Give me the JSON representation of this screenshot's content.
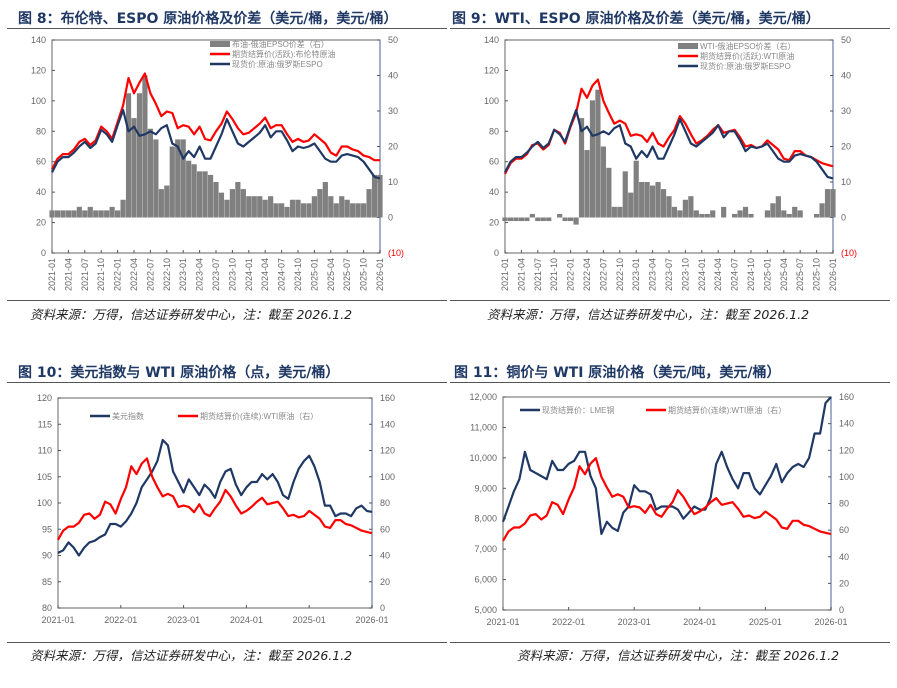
{
  "figures": [
    {
      "title": "图 8：布伦特、ESPO 原油价格及价差（美元/桶，美元/桶）",
      "source": "资料来源：万得，信达证券研发中心，注：截至 2026.1.2"
    },
    {
      "title": "图 9：WTI、ESPO 原油价格及价差（美元/桶，美元/桶）",
      "source": "资料来源：万得，信达证券研发中心，注：截至 2026.1.2"
    },
    {
      "title": "图 10：美元指数与 WTI 原油价格（点，美元/桶）",
      "source": "资料来源：万得，信达证券研发中心，注：截至 2026.1.2"
    },
    {
      "title": "图 11：铜价与 WTI 原油价格（美元/吨，美元/桶）",
      "source": "资料来源：万得，信达证券研发中心，注：截至 2026.1.2"
    }
  ],
  "colors": {
    "red": "#ff0000",
    "navy": "#1f3864",
    "gray": "#808080",
    "title": "#1f3864"
  },
  "chart_data": [
    {
      "type": "line",
      "title": "布伦特、ESPO 原油价格及价差",
      "x_ticks": [
        "2021-01",
        "2021-04",
        "2021-07",
        "2021-10",
        "2022-01",
        "2022-04",
        "2022-07",
        "2022-10",
        "2023-01",
        "2023-04",
        "2023-07",
        "2023-10",
        "2024-01",
        "2024-04",
        "2024-07",
        "2024-10",
        "2025-01",
        "2025-04",
        "2025-07",
        "2025-10",
        "2026-01"
      ],
      "y_left": {
        "min": 0,
        "max": 140,
        "ticks": [
          "0",
          "20",
          "40",
          "60",
          "80",
          "100",
          "120",
          "140"
        ]
      },
      "y_right": {
        "min": -10,
        "max": 50,
        "ticks": [
          "(10)",
          "0",
          "10",
          "20",
          "30",
          "40",
          "50"
        ]
      },
      "legend": "top-center",
      "series": [
        {
          "name": "布油-俄油EPSO价差（右）",
          "kind": "bar",
          "axis": "right",
          "color": "#808080",
          "values": [
            2,
            2,
            2,
            2,
            2,
            3,
            2,
            3,
            2,
            2,
            2,
            3,
            2,
            5,
            35,
            28,
            35,
            40,
            25,
            22,
            8,
            9,
            20,
            22,
            22,
            16,
            15,
            13,
            13,
            12,
            10,
            7,
            5,
            8,
            10,
            8,
            6,
            6,
            6,
            5,
            6,
            4,
            4,
            3,
            5,
            5,
            4,
            4,
            6,
            8,
            10,
            6,
            4,
            6,
            5,
            4,
            4,
            4,
            8,
            12,
            12
          ]
        },
        {
          "name": "期货结算价(活跃):布伦特原油",
          "kind": "line",
          "axis": "left",
          "color": "#ff0000",
          "values": [
            55,
            62,
            65,
            65,
            68,
            73,
            75,
            71,
            74,
            83,
            80,
            75,
            86,
            97,
            115,
            105,
            112,
            118,
            105,
            98,
            90,
            93,
            92,
            82,
            84,
            83,
            78,
            83,
            75,
            74,
            80,
            85,
            93,
            88,
            82,
            78,
            79,
            82,
            85,
            89,
            82,
            84,
            84,
            78,
            73,
            75,
            73,
            74,
            78,
            75,
            72,
            66,
            64,
            70,
            70,
            68,
            67,
            64,
            63,
            61,
            61
          ]
        },
        {
          "name": "现货价:原油:俄罗斯ESPO",
          "kind": "line",
          "axis": "left",
          "color": "#1f3864",
          "values": [
            53,
            60,
            63,
            63,
            66,
            70,
            73,
            69,
            72,
            81,
            78,
            73,
            84,
            94,
            80,
            83,
            77,
            78,
            80,
            78,
            82,
            84,
            72,
            70,
            62,
            67,
            63,
            70,
            62,
            62,
            70,
            78,
            88,
            80,
            72,
            70,
            73,
            76,
            79,
            84,
            76,
            80,
            80,
            74,
            67,
            70,
            69,
            70,
            72,
            67,
            62,
            60,
            60,
            64,
            65,
            64,
            63,
            60,
            55,
            50,
            49
          ]
        }
      ]
    },
    {
      "type": "line",
      "title": "WTI、ESPO 原油价格及价差",
      "x_ticks": [
        "2021-01",
        "2021-04",
        "2021-07",
        "2021-10",
        "2022-01",
        "2022-04",
        "2022-07",
        "2022-10",
        "2023-01",
        "2023-04",
        "2023-07",
        "2023-10",
        "2024-01",
        "2024-04",
        "2024-07",
        "2024-10",
        "2025-01",
        "2025-04",
        "2025-07",
        "2025-10",
        "2026-01"
      ],
      "y_left": {
        "min": 0,
        "max": 140,
        "ticks": [
          "0",
          "20",
          "40",
          "60",
          "80",
          "100",
          "120",
          "140"
        ]
      },
      "y_right": {
        "min": -10,
        "max": 50,
        "ticks": [
          "(10)",
          "0",
          "10",
          "20",
          "30",
          "40",
          "50"
        ]
      },
      "legend": "top-center",
      "series": [
        {
          "name": "WTI-俄油EPSO价差（右）",
          "kind": "bar",
          "axis": "right",
          "color": "#808080",
          "values": [
            -1,
            -1,
            -1,
            -1,
            -1,
            1,
            -1,
            -1,
            -1,
            0,
            1,
            -1,
            -1,
            -2,
            28,
            19,
            33,
            36,
            20,
            14,
            3,
            3,
            13,
            7,
            16,
            10,
            10,
            9,
            10,
            8,
            6,
            3,
            2,
            5,
            6,
            2,
            1,
            1,
            2,
            0,
            3,
            0,
            1,
            2,
            3,
            1,
            0,
            0,
            2,
            4,
            6,
            2,
            1,
            3,
            2,
            0,
            0,
            1,
            4,
            8,
            8
          ]
        },
        {
          "name": "期货结算价(活跃):WTI原油",
          "kind": "line",
          "axis": "left",
          "color": "#ff0000",
          "values": [
            52,
            59,
            62,
            62,
            65,
            71,
            72,
            68,
            71,
            81,
            79,
            72,
            83,
            92,
            108,
            102,
            110,
            114,
            100,
            92,
            85,
            87,
            85,
            77,
            78,
            77,
            73,
            79,
            72,
            70,
            76,
            81,
            90,
            85,
            78,
            72,
            74,
            77,
            81,
            84,
            79,
            80,
            81,
            76,
            70,
            71,
            69,
            70,
            74,
            71,
            68,
            62,
            61,
            67,
            67,
            64,
            63,
            61,
            59,
            58,
            57
          ]
        },
        {
          "name": "现货价:原油:俄罗斯ESPO",
          "kind": "line",
          "axis": "left",
          "color": "#1f3864",
          "values": [
            53,
            60,
            63,
            63,
            66,
            70,
            73,
            69,
            72,
            81,
            78,
            73,
            84,
            94,
            80,
            83,
            77,
            78,
            80,
            78,
            82,
            84,
            72,
            70,
            62,
            67,
            63,
            70,
            62,
            62,
            70,
            78,
            88,
            80,
            72,
            70,
            73,
            76,
            79,
            84,
            76,
            80,
            80,
            74,
            67,
            70,
            69,
            70,
            72,
            67,
            62,
            60,
            60,
            64,
            65,
            64,
            63,
            60,
            55,
            50,
            49
          ]
        }
      ]
    },
    {
      "type": "line",
      "title": "美元指数与 WTI 原油价格",
      "x_ticks": [
        "2021-01",
        "2022-01",
        "2023-01",
        "2024-01",
        "2025-01",
        "2026-01"
      ],
      "y_left": {
        "min": 80,
        "max": 120,
        "ticks": [
          "80",
          "85",
          "90",
          "95",
          "100",
          "105",
          "110",
          "115",
          "120"
        ]
      },
      "y_right": {
        "min": 0,
        "max": 160,
        "ticks": [
          "0",
          "20",
          "40",
          "60",
          "80",
          "100",
          "120",
          "140",
          "160"
        ]
      },
      "legend": "top",
      "series": [
        {
          "name": "美元指数",
          "kind": "line",
          "axis": "left",
          "color": "#1f3864",
          "values": [
            90.5,
            91,
            92.5,
            91.5,
            90,
            91.5,
            92.5,
            92.8,
            93.5,
            94,
            96,
            96,
            95.5,
            96.5,
            98,
            100,
            103,
            104.5,
            106,
            108,
            112,
            111,
            106,
            104,
            102,
            104.5,
            103,
            101.5,
            103.5,
            102.5,
            101,
            104,
            106,
            106.5,
            103.5,
            101.5,
            103,
            104,
            104,
            105.5,
            104.5,
            105.5,
            104,
            101.5,
            100.8,
            104,
            106.5,
            108,
            109,
            107,
            104,
            99.5,
            99.5,
            97.5,
            98,
            98,
            97.5,
            99,
            99.5,
            98.5,
            98.3
          ]
        },
        {
          "name": "期货结算价(连续):WTI原油（右）",
          "kind": "line",
          "axis": "right",
          "color": "#ff0000",
          "values": [
            52,
            59,
            62,
            62,
            65,
            71,
            72,
            68,
            71,
            81,
            79,
            72,
            83,
            92,
            108,
            102,
            110,
            114,
            100,
            92,
            85,
            87,
            85,
            77,
            78,
            77,
            73,
            79,
            72,
            70,
            76,
            81,
            90,
            85,
            78,
            72,
            74,
            77,
            81,
            84,
            79,
            80,
            81,
            76,
            70,
            71,
            69,
            70,
            74,
            71,
            68,
            62,
            61,
            67,
            67,
            64,
            63,
            61,
            59,
            58,
            57
          ]
        }
      ]
    },
    {
      "type": "line",
      "title": "铜价与 WTI 原油价格",
      "x_ticks": [
        "2021-01",
        "2022-01",
        "2023-01",
        "2024-01",
        "2025-01",
        "2026-01"
      ],
      "y_left": {
        "min": 5000,
        "max": 12000,
        "ticks": [
          "5,000",
          "6,000",
          "7,000",
          "8,000",
          "9,000",
          "10,000",
          "11,000",
          "12,000"
        ]
      },
      "y_right": {
        "min": 0,
        "max": 160,
        "ticks": [
          "0",
          "20",
          "40",
          "60",
          "80",
          "100",
          "120",
          "140",
          "160"
        ]
      },
      "legend": "top",
      "series": [
        {
          "name": "现货结算价：LME铜",
          "kind": "line",
          "axis": "left",
          "color": "#1f3864",
          "values": [
            7900,
            8400,
            8900,
            9300,
            10200,
            9600,
            9500,
            9400,
            9300,
            9900,
            9600,
            9600,
            9800,
            9900,
            10200,
            10200,
            9400,
            9000,
            7500,
            7900,
            7700,
            7600,
            8200,
            8400,
            9100,
            8900,
            8900,
            8800,
            8300,
            8400,
            8400,
            8400,
            8300,
            8000,
            8200,
            8400,
            8300,
            8300,
            8700,
            9800,
            10200,
            9700,
            9300,
            9000,
            9500,
            9500,
            9000,
            8800,
            9100,
            9400,
            9800,
            9200,
            9500,
            9700,
            9800,
            9700,
            10000,
            10800,
            10800,
            11800,
            12000
          ]
        },
        {
          "name": "期货结算价(连续):WTI原油（右）",
          "kind": "line",
          "axis": "right",
          "color": "#ff0000",
          "values": [
            52,
            59,
            62,
            62,
            65,
            71,
            72,
            68,
            71,
            81,
            79,
            72,
            83,
            92,
            108,
            102,
            110,
            114,
            100,
            92,
            85,
            87,
            85,
            77,
            78,
            77,
            73,
            79,
            72,
            70,
            76,
            81,
            90,
            85,
            78,
            72,
            74,
            77,
            81,
            84,
            79,
            80,
            81,
            76,
            70,
            71,
            69,
            70,
            74,
            71,
            68,
            62,
            61,
            67,
            67,
            64,
            63,
            61,
            59,
            58,
            57
          ]
        }
      ]
    }
  ]
}
